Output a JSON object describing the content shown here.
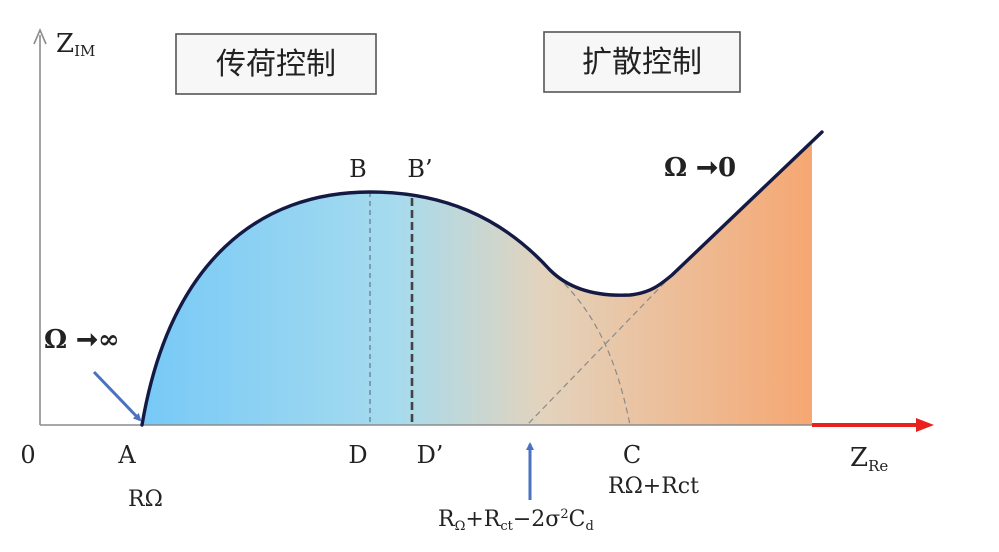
{
  "axes": {
    "y_label_main": "Z",
    "y_label_sub": "IM",
    "x_label_main": "Z",
    "x_label_sub": "Re",
    "origin": "0"
  },
  "regions": {
    "left": "传荷控制",
    "right": "扩散控制"
  },
  "points": {
    "A": "A",
    "B": "B",
    "B_prime": "B’",
    "C": "C",
    "D": "D",
    "D_prime": "D’"
  },
  "annotations": {
    "omega_infinity": "Ω ➞∞",
    "omega_zero": "Ω ➞0",
    "r_omega": "RΩ",
    "r_omega_rct": "RΩ+Rct",
    "intercept_main_1": "R",
    "intercept_sub_1": "Ω",
    "intercept_main_2": "+R",
    "intercept_sub_2": "ct",
    "intercept_main_3": "−2σ",
    "intercept_sup_1": "2",
    "intercept_main_4": "C",
    "intercept_sub_3": "d"
  },
  "colors": {
    "fill_blue": "#7dcdf5",
    "fill_orange": "#f6a978",
    "curve": "#141a44",
    "axis": "#888888",
    "arrow_blue": "#4a72c0",
    "axis_red": "#e8201e"
  }
}
